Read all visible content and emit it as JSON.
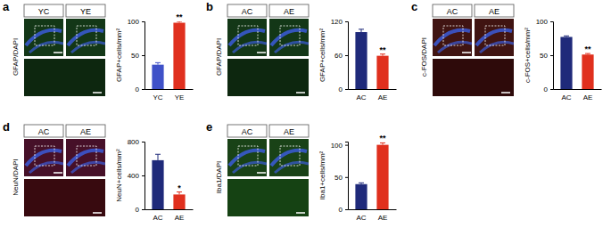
{
  "chart_data": [
    {
      "type": "bar",
      "title": "a",
      "stain": "GFAP/DAPI",
      "image_labels": [
        "YC",
        "YE"
      ],
      "categories": [
        "YC",
        "YE"
      ],
      "values": [
        36,
        98
      ],
      "error": [
        3,
        2
      ],
      "colors": [
        "#3f51c8",
        "#e0301e"
      ],
      "y_label": "GFAP+cells/mm²",
      "ylim": [
        0,
        100
      ],
      "yticks": [
        0,
        50,
        100
      ],
      "annotations": [
        {
          "text": "**",
          "category": "YE"
        }
      ]
    },
    {
      "type": "bar",
      "title": "b",
      "stain": "GFAP/DAPI",
      "image_labels": [
        "AC",
        "AE"
      ],
      "categories": [
        "AC",
        "AE"
      ],
      "values": [
        101,
        59
      ],
      "error": [
        5,
        3
      ],
      "colors": [
        "#1f2a7a",
        "#e0301e"
      ],
      "y_label": "GFAP+cells/mm²",
      "ylim": [
        0,
        120
      ],
      "yticks": [
        0,
        60,
        120
      ],
      "annotations": [
        {
          "text": "**",
          "category": "AE"
        }
      ]
    },
    {
      "type": "bar",
      "title": "c",
      "stain": "c-FOS/DAPI",
      "image_labels": [
        "AC",
        "AE"
      ],
      "categories": [
        "AC",
        "AE"
      ],
      "values": [
        77,
        51
      ],
      "error": [
        1.5,
        1.5
      ],
      "colors": [
        "#1f2a7a",
        "#e0301e"
      ],
      "y_label": "c-FOS+cells/mm²",
      "ylim": [
        0,
        100
      ],
      "yticks": [
        0,
        50,
        100
      ],
      "annotations": [
        {
          "text": "**",
          "category": "AE"
        }
      ]
    },
    {
      "type": "bar",
      "title": "d",
      "stain": "NeuN/DAPI",
      "image_labels": [
        "AC",
        "AE"
      ],
      "categories": [
        "AC",
        "AE"
      ],
      "values": [
        580,
        175
      ],
      "error": [
        70,
        30
      ],
      "colors": [
        "#1f2a7a",
        "#e0301e"
      ],
      "y_label": "NeuN+cells/mm²",
      "ylim": [
        0,
        800
      ],
      "yticks": [
        0,
        400,
        800
      ],
      "annotations": [
        {
          "text": "*",
          "category": "AE"
        }
      ]
    },
    {
      "type": "bar",
      "title": "e",
      "stain": "Iba1/DAPI",
      "image_labels": [
        "AC",
        "AE"
      ],
      "categories": [
        "AC",
        "AE"
      ],
      "values": [
        39,
        100
      ],
      "error": [
        2,
        3
      ],
      "colors": [
        "#1f2a7a",
        "#e0301e"
      ],
      "y_label": "Iba1+cells/mm²",
      "ylim": [
        0,
        105
      ],
      "yticks": [
        0,
        50,
        100
      ],
      "annotations": [
        {
          "text": "**",
          "category": "AE"
        }
      ]
    }
  ]
}
